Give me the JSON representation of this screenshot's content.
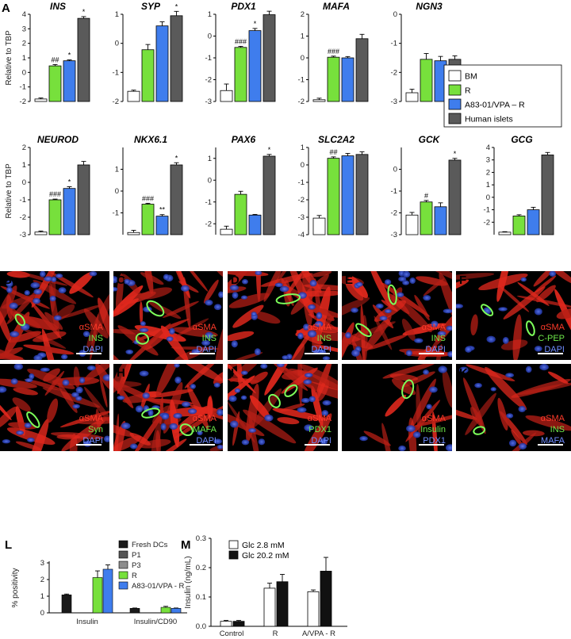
{
  "colors": {
    "BM": "#ffffff",
    "R": "#77e03c",
    "A83": "#3f7ded",
    "Human": "#5a5a5a",
    "Fresh": "#1a1a1a",
    "P1": "#555555",
    "P3": "#8c8c8c",
    "red": "#ff3b2a",
    "green": "#6ee84a",
    "blue": "#6f8cff",
    "white": "#ffffff"
  },
  "panel_letters": [
    "A",
    "B",
    "C",
    "D",
    "E",
    "F",
    "G",
    "H",
    "I",
    "J",
    "K",
    "L",
    "M"
  ],
  "legend_A": [
    "BM",
    "R",
    "A83-01/VPA – R",
    "Human islets"
  ],
  "ylabel_A": "Relative to TBP",
  "chart_data": [
    {
      "id": "INS",
      "type": "bar",
      "title": "INS",
      "log": true,
      "ylim": [
        -2,
        4
      ],
      "ticks": [
        "-2",
        "-1",
        "0",
        "1",
        "2",
        "3",
        "4"
      ],
      "series": [
        {
          "name": "BM",
          "value": -1.83,
          "err": 0.07
        },
        {
          "name": "R",
          "value": 0.45,
          "err": 0.09,
          "sig": "##"
        },
        {
          "name": "A83-01/VPA – R",
          "value": 0.8,
          "err": 0.06,
          "sig": "*"
        },
        {
          "name": "Human islets",
          "value": 3.72,
          "err": 0.12,
          "sig": "*"
        }
      ]
    },
    {
      "id": "SYP",
      "type": "bar",
      "title": "SYP",
      "log": true,
      "ylim": [
        -2,
        1
      ],
      "ticks": [
        "-2",
        "-1",
        "0",
        "1"
      ],
      "series": [
        {
          "name": "BM",
          "value": -1.65,
          "err": 0.04
        },
        {
          "name": "R",
          "value": -0.22,
          "err": 0.18
        },
        {
          "name": "A83-01/VPA – R",
          "value": 0.6,
          "err": 0.14
        },
        {
          "name": "Human islets",
          "value": 0.95,
          "err": 0.15,
          "sig": "*"
        }
      ]
    },
    {
      "id": "PDX1",
      "type": "bar",
      "title": "PDX1",
      "log": true,
      "ylim": [
        -3,
        1
      ],
      "ticks": [
        "-3",
        "-2",
        "-1",
        "0",
        "1"
      ],
      "series": [
        {
          "name": "BM",
          "value": -2.5,
          "err": 0.3
        },
        {
          "name": "R",
          "value": -0.52,
          "err": 0.05,
          "sig": "###"
        },
        {
          "name": "A83-01/VPA – R",
          "value": 0.25,
          "err": 0.1,
          "sig": "*"
        },
        {
          "name": "Human islets",
          "value": 0.98,
          "err": 0.16
        }
      ]
    },
    {
      "id": "MAFA",
      "type": "bar",
      "title": "MAFA",
      "log": true,
      "ylim": [
        -2,
        2
      ],
      "ticks": [
        "-2",
        "-1",
        "0",
        "1",
        "2"
      ],
      "series": [
        {
          "name": "BM",
          "value": -1.92,
          "err": 0.07
        },
        {
          "name": "R",
          "value": 0.03,
          "err": 0.05,
          "sig": "###"
        },
        {
          "name": "A83-01/VPA – R",
          "value": 0.0,
          "err": 0.06
        },
        {
          "name": "Human islets",
          "value": 0.88,
          "err": 0.2
        }
      ]
    },
    {
      "id": "NGN3",
      "type": "bar",
      "title": "NGN3",
      "log": true,
      "ylim": [
        -3,
        0
      ],
      "ticks": [
        "-3",
        "-2",
        "-1",
        "0"
      ],
      "series": [
        {
          "name": "BM",
          "value": -2.7,
          "err": 0.12
        },
        {
          "name": "R",
          "value": -1.55,
          "err": 0.2
        },
        {
          "name": "A83-01/VPA – R",
          "value": -1.6,
          "err": 0.15
        },
        {
          "name": "Human islets",
          "value": -1.55,
          "err": 0.12
        }
      ]
    },
    {
      "id": "NEUROD",
      "type": "bar",
      "title": "NEUROD",
      "log": true,
      "ylim": [
        -3,
        2
      ],
      "ticks": [
        "-3",
        "-2",
        "-1",
        "0",
        "1",
        "2"
      ],
      "series": [
        {
          "name": "BM",
          "value": -2.85,
          "err": 0.06
        },
        {
          "name": "R",
          "value": -1.0,
          "err": 0.04,
          "sig": "###"
        },
        {
          "name": "A83-01/VPA – R",
          "value": -0.35,
          "err": 0.1,
          "sig": "*"
        },
        {
          "name": "Human islets",
          "value": 1.0,
          "err": 0.2
        }
      ]
    },
    {
      "id": "NKX61",
      "type": "bar",
      "title": "NKX6.1",
      "log": true,
      "ylim": [
        -2,
        2
      ],
      "ticks": [
        "-1",
        "0",
        "1"
      ],
      "series": [
        {
          "name": "BM",
          "value": -1.9,
          "err": 0.1
        },
        {
          "name": "R",
          "value": -0.6,
          "err": 0.04,
          "sig": "###"
        },
        {
          "name": "A83-01/VPA – R",
          "value": -1.15,
          "err": 0.07,
          "sig": "**"
        },
        {
          "name": "Human islets",
          "value": 1.2,
          "err": 0.1,
          "sig": "*"
        }
      ]
    },
    {
      "id": "PAX6",
      "type": "bar",
      "title": "PAX6",
      "log": true,
      "ylim": [
        -2.5,
        1.5
      ],
      "ticks": [
        "-2",
        "-1",
        "0",
        "1"
      ],
      "series": [
        {
          "name": "BM",
          "value": -2.25,
          "err": 0.14
        },
        {
          "name": "R",
          "value": -0.65,
          "err": 0.14
        },
        {
          "name": "A83-01/VPA – R",
          "value": -1.6,
          "err": 0.03
        },
        {
          "name": "Human islets",
          "value": 1.1,
          "err": 0.08,
          "sig": "*"
        }
      ]
    },
    {
      "id": "SLC2A2",
      "type": "bar",
      "title": "SLC2A2",
      "log": true,
      "ylim": [
        -4,
        1
      ],
      "ticks": [
        "-4",
        "-3",
        "-2",
        "-1",
        "0",
        "1"
      ],
      "series": [
        {
          "name": "BM",
          "value": -3.05,
          "err": 0.15
        },
        {
          "name": "R",
          "value": 0.38,
          "err": 0.08,
          "sig": "##"
        },
        {
          "name": "A83-01/VPA – R",
          "value": 0.52,
          "err": 0.14
        },
        {
          "name": "Human islets",
          "value": 0.6,
          "err": 0.15
        }
      ]
    },
    {
      "id": "GCK",
      "type": "bar",
      "title": "GCK",
      "log": true,
      "ylim": [
        -3,
        1
      ],
      "ticks": [
        "-3",
        "-2",
        "-1",
        "0"
      ],
      "series": [
        {
          "name": "BM",
          "value": -2.1,
          "err": 0.12
        },
        {
          "name": "R",
          "value": -1.5,
          "err": 0.07,
          "sig": "#"
        },
        {
          "name": "A83-01/VPA – R",
          "value": -1.72,
          "err": 0.18
        },
        {
          "name": "Human islets",
          "value": 0.42,
          "err": 0.08,
          "sig": "*"
        }
      ]
    },
    {
      "id": "GCG",
      "type": "bar",
      "title": "GCG",
      "log": true,
      "ylim": [
        -3,
        4
      ],
      "ticks": [
        "-2",
        "-1",
        "0",
        "1",
        "2",
        "3",
        "4"
      ],
      "series": [
        {
          "name": "BM",
          "value": -2.8,
          "err": 0.04
        },
        {
          "name": "R",
          "value": -1.5,
          "err": 0.1
        },
        {
          "name": "A83-01/VPA – R",
          "value": -1.0,
          "err": 0.2
        },
        {
          "name": "Human islets",
          "value": 3.4,
          "err": 0.2
        }
      ]
    },
    {
      "id": "L",
      "type": "bar",
      "ylabel": "% positivity",
      "ylim": [
        0,
        3
      ],
      "ticks": [
        "0",
        "1",
        "2",
        "3"
      ],
      "categories": [
        "Insulin",
        "Insulin/CD90"
      ],
      "series": [
        {
          "name": "Fresh DCs",
          "values": [
            1.08,
            0.27
          ],
          "err": [
            0.05,
            0.02
          ]
        },
        {
          "name": "P1",
          "values": [
            0,
            0
          ],
          "err": [
            0,
            0
          ]
        },
        {
          "name": "P3",
          "values": [
            0,
            0
          ],
          "err": [
            0,
            0
          ]
        },
        {
          "name": "R",
          "values": [
            2.12,
            0.33
          ],
          "err": [
            0.4,
            0.06
          ]
        },
        {
          "name": "A83-01/VPA - R",
          "values": [
            2.62,
            0.27
          ],
          "err": [
            0.26,
            0.02
          ]
        }
      ]
    },
    {
      "id": "M",
      "type": "bar",
      "ylabel": "Insulin (ng/mL)",
      "ylim": [
        0,
        0.3
      ],
      "ticks": [
        "0.0",
        "0.1",
        "0.2",
        "0.3"
      ],
      "categories": [
        "Control",
        "R",
        "A/VPA - R"
      ],
      "series": [
        {
          "name": "Glc 2.8 mM",
          "values": [
            0.017,
            0.13,
            0.118
          ],
          "err": [
            0.003,
            0.017,
            0.006
          ]
        },
        {
          "name": "Glc 20.2 mM",
          "values": [
            0.017,
            0.152,
            0.188
          ],
          "err": [
            0.003,
            0.025,
            0.047
          ]
        }
      ]
    }
  ],
  "micro": [
    {
      "letter": "B",
      "lines": [
        {
          "t": "αSMA",
          "c": "red"
        },
        {
          "t": "INS",
          "c": "green"
        },
        {
          "t": "DAPI",
          "c": "blue"
        }
      ]
    },
    {
      "letter": "C",
      "lines": [
        {
          "t": "αSMA",
          "c": "red"
        },
        {
          "t": "INS",
          "c": "green"
        },
        {
          "t": "DAPI",
          "c": "blue"
        }
      ]
    },
    {
      "letter": "D",
      "lines": [
        {
          "t": "αSMA",
          "c": "red"
        },
        {
          "t": "INS",
          "c": "green"
        },
        {
          "t": "DAPI",
          "c": "blue"
        }
      ]
    },
    {
      "letter": "E",
      "lines": [
        {
          "t": "αSMA",
          "c": "red"
        },
        {
          "t": "INS",
          "c": "green"
        },
        {
          "t": "DAPI",
          "c": "blue"
        }
      ]
    },
    {
      "letter": "F",
      "lines": [
        {
          "t": "αSMA",
          "c": "red"
        },
        {
          "t": "C-PEP",
          "c": "green"
        },
        {
          "t": "DAPI",
          "c": "blue"
        }
      ]
    },
    {
      "letter": "G",
      "lines": [
        {
          "t": "αSMA",
          "c": "red"
        },
        {
          "t": "Syn",
          "c": "green"
        },
        {
          "t": "DAPI",
          "c": "blue"
        }
      ]
    },
    {
      "letter": "H",
      "lines": [
        {
          "t": "αSMA",
          "c": "red"
        },
        {
          "t": "MAFA",
          "c": "green"
        },
        {
          "t": "DAPI",
          "c": "blue"
        }
      ]
    },
    {
      "letter": "I",
      "lines": [
        {
          "t": "αSMA",
          "c": "red"
        },
        {
          "t": "PDX1",
          "c": "green"
        },
        {
          "t": "DAPI",
          "c": "blue"
        }
      ]
    },
    {
      "letter": "J",
      "lines": [
        {
          "t": "αSMA",
          "c": "red"
        },
        {
          "t": "Insulin",
          "c": "green"
        },
        {
          "t": "PDX1",
          "c": "blue"
        }
      ]
    },
    {
      "letter": "K",
      "lines": [
        {
          "t": "αSMA",
          "c": "red"
        },
        {
          "t": "INS",
          "c": "green"
        },
        {
          "t": "MAFA",
          "c": "blue"
        }
      ]
    }
  ]
}
